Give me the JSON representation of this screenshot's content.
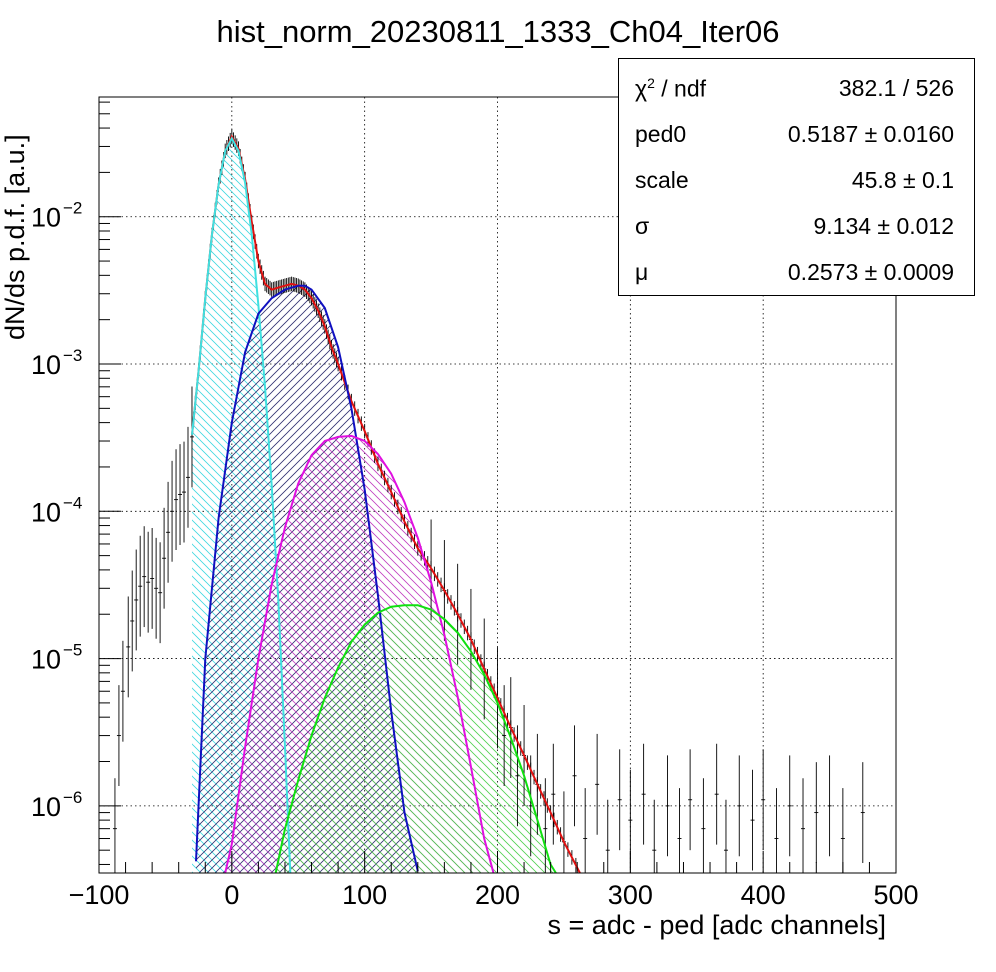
{
  "chart_data": {
    "type": "line",
    "title": "hist_norm_20230811_1333_Ch04_Iter06",
    "xlabel": "s = adc - ped [adc channels]",
    "ylabel": "dN/ds p.d.f. [a.u.]",
    "xlim": [
      -100,
      500
    ],
    "ylim": [
      3.5e-07,
      0.065
    ],
    "yscale": "log",
    "grid": true,
    "x_ticks": [
      -100,
      0,
      100,
      200,
      300,
      400,
      500
    ],
    "y_ticks": [
      {
        "value": 1e-06,
        "label": "10",
        "exp": "−6"
      },
      {
        "value": 1e-05,
        "label": "10",
        "exp": "−5"
      },
      {
        "value": 0.0001,
        "label": "10",
        "exp": "−4"
      },
      {
        "value": 0.001,
        "label": "10",
        "exp": "−3"
      },
      {
        "value": 0.01,
        "label": "10",
        "exp": "−2"
      }
    ],
    "series": [
      {
        "color": "#e01010",
        "x": [
          -30,
          -25,
          -20,
          -15,
          -10,
          -5,
          0,
          5,
          10,
          15,
          20,
          25,
          30,
          35,
          40,
          45,
          50,
          55,
          60,
          65,
          70,
          75,
          80,
          90,
          100,
          110,
          120,
          130,
          140,
          150,
          160,
          170,
          180,
          190,
          200,
          210,
          220,
          230,
          240,
          250,
          262
        ],
        "y": [
          0.00033,
          0.0009,
          0.0028,
          0.0075,
          0.0165,
          0.028,
          0.035,
          0.029,
          0.018,
          0.0092,
          0.005,
          0.0035,
          0.0032,
          0.0033,
          0.0034,
          0.0035,
          0.0034,
          0.0032,
          0.0028,
          0.0023,
          0.0018,
          0.0013,
          0.001,
          0.00056,
          0.00035,
          0.00021,
          0.000135,
          8.5e-05,
          5.6e-05,
          4.1e-05,
          2.9e-05,
          2e-05,
          1.35e-05,
          8.5e-06,
          5.4e-06,
          3.4e-06,
          2.2e-06,
          1.4e-06,
          9e-07,
          5.7e-07,
          3.5e-07
        ]
      },
      {
        "color": "#40e0e0",
        "x": [
          -30,
          -25,
          -20,
          -15,
          -10,
          -5,
          0,
          5,
          10,
          15,
          20,
          25,
          30,
          35,
          40,
          44
        ],
        "y": [
          0.00033,
          0.0009,
          0.0028,
          0.0075,
          0.0165,
          0.028,
          0.034,
          0.028,
          0.017,
          0.0075,
          0.0025,
          0.0007,
          0.00015,
          2.5e-05,
          2.5e-06,
          3.5e-07
        ]
      },
      {
        "color": "#1010c0",
        "x": [
          -27,
          -20,
          -10,
          0,
          10,
          20,
          30,
          40,
          50,
          55,
          60,
          70,
          80,
          90,
          100,
          110,
          120,
          130,
          140
        ],
        "y": [
          4.2e-07,
          1e-05,
          9e-05,
          0.0004,
          0.0012,
          0.0022,
          0.0028,
          0.0032,
          0.0034,
          0.0034,
          0.0032,
          0.0024,
          0.0013,
          0.0005,
          0.00014,
          2.7e-05,
          4.4e-06,
          9e-07,
          3.6e-07
        ]
      },
      {
        "color": "#e010e0",
        "x": [
          -5,
          0,
          10,
          20,
          30,
          40,
          50,
          60,
          70,
          80,
          90,
          100,
          110,
          120,
          130,
          140,
          150,
          160,
          170,
          180,
          190,
          197
        ],
        "y": [
          3.5e-07,
          5.5e-07,
          2.5e-06,
          1e-05,
          3.2e-05,
          7.8e-05,
          0.000155,
          0.00024,
          0.0003,
          0.00032,
          0.000325,
          0.0003,
          0.000245,
          0.00018,
          0.000115,
          6.6e-05,
          3.3e-05,
          1.45e-05,
          5.5e-06,
          1.85e-06,
          6e-07,
          3.5e-07
        ]
      },
      {
        "color": "#10e010",
        "x": [
          33,
          40,
          50,
          60,
          70,
          80,
          90,
          100,
          110,
          120,
          130,
          140,
          150,
          160,
          170,
          180,
          190,
          200,
          210,
          220,
          230,
          240,
          244
        ],
        "y": [
          3.5e-07,
          7e-07,
          1.5e-06,
          3e-06,
          5.4e-06,
          8.7e-06,
          1.3e-05,
          1.7e-05,
          2.05e-05,
          2.25e-05,
          2.3e-05,
          2.3e-05,
          2.15e-05,
          1.85e-05,
          1.5e-05,
          1.12e-05,
          7.8e-06,
          5e-06,
          2.9e-06,
          1.6e-06,
          8e-07,
          4e-07,
          3.5e-07
        ]
      }
    ],
    "histogram": {
      "color": "#000000",
      "bins": [
        [
          -88,
          7e-07
        ],
        [
          -85,
          3e-06
        ],
        [
          -82,
          6e-06
        ],
        [
          -78,
          1.2e-05
        ],
        [
          -75,
          1.8e-05
        ],
        [
          -72,
          2.5e-05
        ],
        [
          -69,
          3.1e-05
        ],
        [
          -66,
          3.6e-05
        ],
        [
          -63,
          3.3e-05
        ],
        [
          -60,
          3.5e-05
        ],
        [
          -57,
          3e-05
        ],
        [
          -54,
          2.8e-05
        ],
        [
          -51,
          4.8e-05
        ],
        [
          -48,
          7.2e-05
        ],
        [
          -45,
          0.0001
        ],
        [
          -42,
          0.00012
        ],
        [
          -39,
          0.00013
        ],
        [
          -36,
          0.000135
        ],
        [
          -33,
          0.00017
        ],
        [
          -30,
          0.00032
        ],
        [
          150,
          4e-05
        ],
        [
          160,
          2.9e-05
        ],
        [
          170,
          2e-05
        ],
        [
          180,
          1.35e-05
        ],
        [
          190,
          8.5e-06
        ],
        [
          200,
          5.4e-06
        ],
        [
          205,
          3e-06
        ],
        [
          210,
          3.4e-06
        ],
        [
          215,
          1.6e-06
        ],
        [
          220,
          2.2e-06
        ],
        [
          225,
          1e-06
        ],
        [
          230,
          1.4e-06
        ],
        [
          236,
          7e-07
        ],
        [
          242,
          1.2e-06
        ],
        [
          250,
          5.7e-07
        ],
        [
          258,
          1.6e-06
        ],
        [
          266,
          6e-07
        ],
        [
          275,
          1.4e-06
        ],
        [
          283,
          5e-07
        ],
        [
          292,
          1.1e-06
        ],
        [
          300,
          8e-07
        ],
        [
          310,
          1.2e-06
        ],
        [
          318,
          5e-07
        ],
        [
          328,
          1e-06
        ],
        [
          337,
          6e-07
        ],
        [
          345,
          1.1e-06
        ],
        [
          355,
          7e-07
        ],
        [
          365,
          1.2e-06
        ],
        [
          372,
          5e-07
        ],
        [
          382,
          1e-06
        ],
        [
          392,
          8e-07
        ],
        [
          400,
          1.1e-06
        ],
        [
          410,
          6e-07
        ],
        [
          420,
          1e-06
        ],
        [
          430,
          7e-07
        ],
        [
          440,
          9e-07
        ],
        [
          450,
          1e-06
        ],
        [
          460,
          6e-07
        ],
        [
          475,
          9e-07
        ]
      ]
    },
    "stats": [
      {
        "name": "χ",
        "sup": "2",
        "suffix": " / ndf",
        "value": "382.1 / 526"
      },
      {
        "name": "ped0",
        "sup": "",
        "suffix": "",
        "value": "0.5187  ± 0.0160"
      },
      {
        "name": "scale",
        "sup": "",
        "suffix": "",
        "value": "45.8  ± 0.1"
      },
      {
        "name": "σ",
        "sup": "",
        "suffix": "",
        "value": "9.134  ± 0.012"
      },
      {
        "name": "μ",
        "sup": "",
        "suffix": "",
        "value": "0.2573  ± 0.0009"
      }
    ]
  }
}
